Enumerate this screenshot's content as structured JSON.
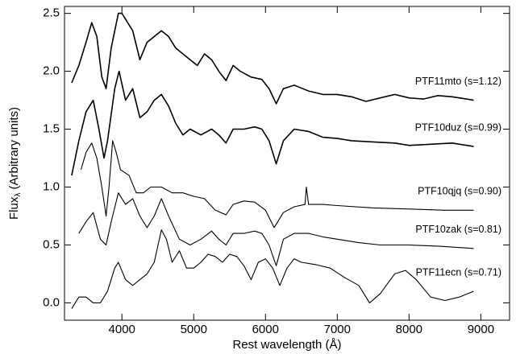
{
  "chart_data": {
    "type": "line",
    "xlabel": "Rest wavelength (Å)",
    "ylabel": "Flux",
    "ylabel_sub": "λ",
    "ylabel_rest": " (Arbitrary units)",
    "xlim": [
      3200,
      9400
    ],
    "ylim": [
      -0.15,
      2.56
    ],
    "xticks": [
      4000,
      5000,
      6000,
      7000,
      8000,
      9000
    ],
    "yticks": [
      {
        "value": 0,
        "label": "0.0"
      },
      0.5,
      {
        "value": 1,
        "label": "1.0"
      },
      1.5,
      {
        "value": 2,
        "label": "2.0"
      },
      2.5
    ],
    "series": [
      {
        "name": "PTF11mto (s=1.12)",
        "color": "#000000",
        "x": [
          3300,
          3400,
          3500,
          3580,
          3650,
          3720,
          3780,
          3850,
          3950,
          4000,
          4050,
          4150,
          4250,
          4350,
          4450,
          4550,
          4650,
          4750,
          4850,
          4950,
          5050,
          5150,
          5250,
          5350,
          5450,
          5550,
          5650,
          5800,
          5950,
          6050,
          6150,
          6250,
          6400,
          6600,
          6800,
          7000,
          7200,
          7400,
          7600,
          7800,
          8000,
          8200,
          8400,
          8600,
          8800,
          8900
        ],
        "values": [
          1.9,
          2.05,
          2.25,
          2.42,
          2.3,
          1.95,
          1.85,
          2.2,
          2.5,
          2.5,
          2.45,
          2.35,
          2.1,
          2.25,
          2.3,
          2.35,
          2.3,
          2.2,
          2.15,
          2.1,
          2.05,
          2.15,
          2.1,
          2.0,
          1.92,
          2.05,
          2.0,
          1.95,
          1.93,
          1.85,
          1.72,
          1.85,
          1.88,
          1.83,
          1.8,
          1.8,
          1.78,
          1.74,
          1.77,
          1.8,
          1.77,
          1.76,
          1.79,
          1.78,
          1.76,
          1.75
        ]
      },
      {
        "name": "PTF10duz (s=0.99)",
        "color": "#000000",
        "x": [
          3300,
          3400,
          3500,
          3600,
          3680,
          3750,
          3800,
          3900,
          3960,
          4050,
          4150,
          4250,
          4350,
          4450,
          4550,
          4650,
          4750,
          4850,
          4950,
          5100,
          5250,
          5350,
          5450,
          5550,
          5700,
          5850,
          5950,
          6050,
          6150,
          6250,
          6400,
          6600,
          6800,
          7000,
          7200,
          7500,
          7800,
          8000,
          8300,
          8600,
          8900
        ],
        "values": [
          1.1,
          1.4,
          1.65,
          1.75,
          1.5,
          1.25,
          1.4,
          1.85,
          2.0,
          1.75,
          1.85,
          1.6,
          1.65,
          1.75,
          1.8,
          1.7,
          1.55,
          1.45,
          1.5,
          1.45,
          1.5,
          1.45,
          1.38,
          1.5,
          1.5,
          1.52,
          1.5,
          1.4,
          1.2,
          1.4,
          1.5,
          1.48,
          1.43,
          1.42,
          1.4,
          1.39,
          1.38,
          1.36,
          1.37,
          1.38,
          1.35
        ]
      },
      {
        "name": "PTF10qjq (s=0.90)",
        "color": "#000000",
        "x": [
          3430,
          3500,
          3580,
          3650,
          3720,
          3780,
          3820,
          3870,
          3920,
          3980,
          4100,
          4200,
          4300,
          4400,
          4550,
          4700,
          4850,
          5000,
          5150,
          5300,
          5450,
          5550,
          5700,
          5850,
          6000,
          6120,
          6250,
          6400,
          6550,
          6570,
          6600,
          6800,
          7000,
          7500,
          8000,
          8500,
          8900
        ],
        "values": [
          1.15,
          1.3,
          1.38,
          1.25,
          1.0,
          0.75,
          1.0,
          1.4,
          1.3,
          1.15,
          1.1,
          0.95,
          0.95,
          1.0,
          1.0,
          0.95,
          0.95,
          0.92,
          0.9,
          0.8,
          0.76,
          0.85,
          0.88,
          0.87,
          0.8,
          0.65,
          0.78,
          0.83,
          0.85,
          1.0,
          0.85,
          0.85,
          0.84,
          0.82,
          0.81,
          0.8,
          0.8
        ]
      },
      {
        "name": "PTF10zak (s=0.81)",
        "color": "#000000",
        "x": [
          3400,
          3500,
          3600,
          3700,
          3780,
          3850,
          3950,
          4050,
          4150,
          4250,
          4350,
          4450,
          4550,
          4650,
          4800,
          4950,
          5100,
          5250,
          5350,
          5450,
          5550,
          5700,
          5850,
          5950,
          6050,
          6150,
          6250,
          6400,
          6600,
          6800,
          7000,
          7300,
          7600,
          8000,
          8400,
          8900
        ],
        "values": [
          0.6,
          0.7,
          0.78,
          0.55,
          0.5,
          0.7,
          0.95,
          0.85,
          0.9,
          0.75,
          0.65,
          0.75,
          0.9,
          0.75,
          0.55,
          0.5,
          0.55,
          0.62,
          0.55,
          0.5,
          0.6,
          0.6,
          0.62,
          0.6,
          0.5,
          0.32,
          0.55,
          0.6,
          0.6,
          0.57,
          0.55,
          0.52,
          0.5,
          0.5,
          0.49,
          0.47
        ]
      },
      {
        "name": "PTF11ecn (s=0.71)",
        "color": "#000000",
        "x": [
          3300,
          3400,
          3500,
          3600,
          3700,
          3800,
          3900,
          3950,
          4050,
          4150,
          4250,
          4350,
          4450,
          4550,
          4620,
          4700,
          4800,
          4900,
          5000,
          5100,
          5200,
          5300,
          5400,
          5500,
          5600,
          5700,
          5800,
          5900,
          6000,
          6100,
          6200,
          6300,
          6400,
          6500,
          6700,
          6900,
          7100,
          7300,
          7450,
          7600,
          7800,
          7950,
          8100,
          8300,
          8500,
          8700,
          8900
        ],
        "values": [
          -0.05,
          0.05,
          0.05,
          0.0,
          0.0,
          0.1,
          0.3,
          0.35,
          0.2,
          0.15,
          0.2,
          0.25,
          0.35,
          0.63,
          0.55,
          0.35,
          0.45,
          0.3,
          0.3,
          0.35,
          0.42,
          0.4,
          0.35,
          0.42,
          0.4,
          0.32,
          0.2,
          0.35,
          0.38,
          0.3,
          0.15,
          0.3,
          0.38,
          0.35,
          0.33,
          0.3,
          0.22,
          0.15,
          0.0,
          0.08,
          0.25,
          0.28,
          0.2,
          0.05,
          0.02,
          0.05,
          0.1
        ]
      }
    ]
  }
}
